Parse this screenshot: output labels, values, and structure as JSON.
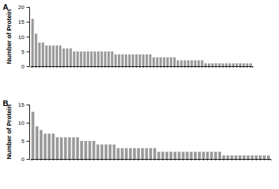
{
  "chart_data": [
    {
      "type": "bar",
      "title": "A",
      "y_label": "Number of Protein",
      "color": "#9a9a9a",
      "categories": [
        null,
        null,
        null,
        null,
        null,
        null,
        null,
        null,
        null,
        null,
        null,
        null,
        null,
        null,
        null,
        null,
        null,
        null,
        null,
        null,
        null,
        null,
        null,
        null,
        null,
        null,
        null,
        null,
        null,
        null,
        null,
        null,
        null,
        null,
        null,
        null,
        null,
        null,
        null,
        null,
        null,
        null,
        null,
        null,
        null,
        null,
        null,
        null,
        null,
        null,
        null,
        null,
        null,
        null,
        null,
        null,
        null,
        null,
        null,
        null,
        null,
        null,
        null,
        null
      ],
      "values": [
        16,
        11,
        8,
        8,
        7,
        7,
        7,
        7,
        7,
        6,
        6,
        6,
        5,
        5,
        5,
        5,
        5,
        5,
        5,
        5,
        5,
        5,
        5,
        5,
        4,
        4,
        4,
        4,
        4,
        4,
        4,
        4,
        4,
        4,
        4,
        3,
        3,
        3,
        3,
        3,
        3,
        3,
        2,
        2,
        2,
        2,
        2,
        2,
        2,
        2,
        1,
        1,
        1,
        1,
        1,
        1,
        1,
        1,
        1,
        1,
        1,
        1,
        1,
        1
      ],
      "ylim": [
        0,
        20
      ],
      "yticks": [
        0,
        5,
        10,
        15,
        20
      ]
    },
    {
      "type": "bar",
      "title": "B",
      "y_label": "Number of Protein",
      "color": "#9a9a9a",
      "categories": [
        null,
        null,
        null,
        null,
        null,
        null,
        null,
        null,
        null,
        null,
        null,
        null,
        null,
        null,
        null,
        null,
        null,
        null,
        null,
        null,
        null,
        null,
        null,
        null,
        null,
        null,
        null,
        null,
        null,
        null,
        null,
        null,
        null,
        null,
        null,
        null,
        null,
        null,
        null,
        null,
        null,
        null,
        null,
        null,
        null,
        null,
        null,
        null,
        null,
        null,
        null,
        null,
        null,
        null,
        null,
        null,
        null,
        null,
        null
      ],
      "values": [
        13,
        9,
        8,
        7,
        7,
        7,
        6,
        6,
        6,
        6,
        6,
        6,
        5,
        5,
        5,
        5,
        4,
        4,
        4,
        4,
        4,
        3,
        3,
        3,
        3,
        3,
        3,
        3,
        3,
        3,
        3,
        2,
        2,
        2,
        2,
        2,
        2,
        2,
        2,
        2,
        2,
        2,
        2,
        2,
        2,
        2,
        2,
        1,
        1,
        1,
        1,
        1,
        1,
        1,
        1,
        1,
        1,
        1,
        1
      ],
      "ylim": [
        0,
        15
      ],
      "yticks": [
        0,
        5,
        10,
        15
      ]
    }
  ]
}
